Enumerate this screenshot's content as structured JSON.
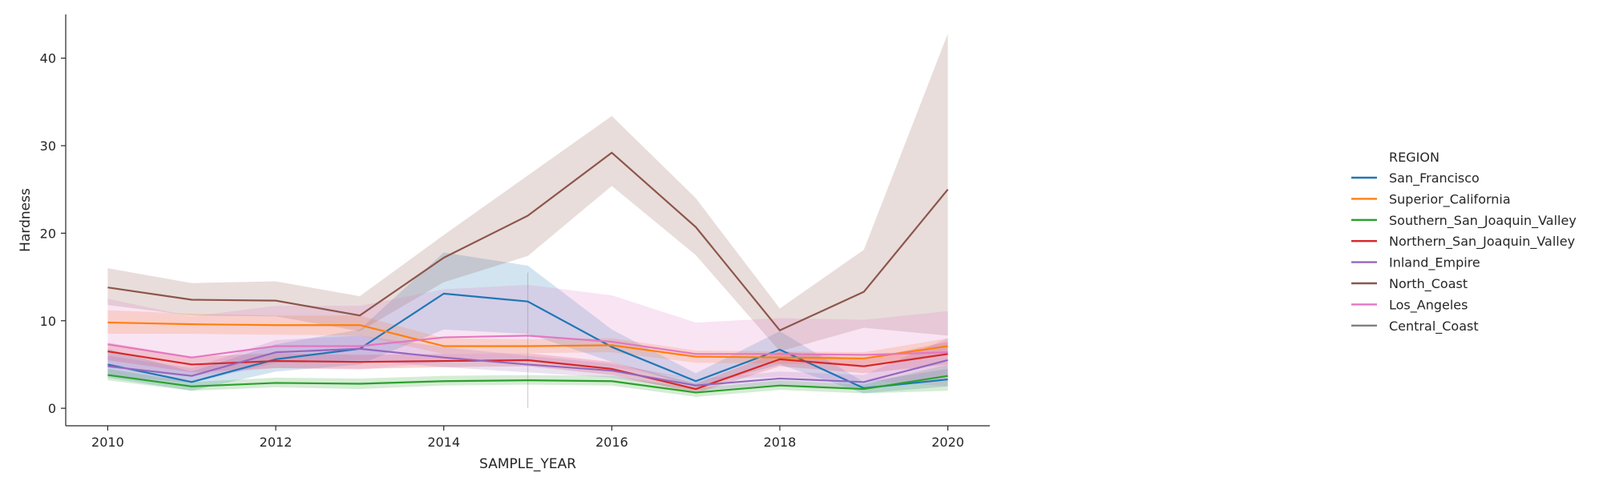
{
  "chart_data": {
    "type": "line",
    "title": "",
    "xlabel": "SAMPLE_YEAR",
    "ylabel": "Hardness",
    "xlim": [
      2009.5,
      2020.5
    ],
    "ylim": [
      -2,
      45
    ],
    "xticks": [
      2010,
      2012,
      2014,
      2016,
      2018,
      2020
    ],
    "yticks": [
      0,
      10,
      20,
      30,
      40
    ],
    "grid": false,
    "legend": {
      "title": "REGION",
      "placement": "right"
    },
    "x": [
      2010,
      2011,
      2012,
      2013,
      2014,
      2015,
      2016,
      2017,
      2018,
      2019,
      2020
    ],
    "series": [
      {
        "name": "San_Francisco",
        "color": "#1f77b4",
        "values": [
          5.0,
          3.0,
          5.6,
          6.8,
          13.1,
          12.2,
          7.0,
          3.1,
          6.7,
          2.3,
          3.3
        ],
        "ci_low": [
          3.5,
          2.0,
          4.2,
          5.0,
          9.0,
          8.5,
          5.3,
          2.4,
          5.0,
          1.7,
          2.5
        ],
        "ci_high": [
          6.8,
          4.2,
          7.3,
          9.0,
          17.8,
          16.3,
          9.0,
          4.0,
          8.8,
          3.0,
          4.5
        ]
      },
      {
        "name": "Superior_California",
        "color": "#ff7f0e",
        "values": [
          9.8,
          9.6,
          9.5,
          9.5,
          7.1,
          7.1,
          7.2,
          5.9,
          5.8,
          5.7,
          7.1
        ],
        "ci_low": [
          8.5,
          8.5,
          8.4,
          8.3,
          6.2,
          6.3,
          6.4,
          5.2,
          5.1,
          5.0,
          6.2
        ],
        "ci_high": [
          11.2,
          10.8,
          10.6,
          10.6,
          8.0,
          7.9,
          8.0,
          6.6,
          6.5,
          6.4,
          8.0
        ]
      },
      {
        "name": "Southern_San_Joaquin_Valley",
        "color": "#2ca02c",
        "values": [
          3.8,
          2.5,
          2.9,
          2.8,
          3.1,
          3.2,
          3.1,
          1.8,
          2.6,
          2.2,
          3.7
        ],
        "ci_low": [
          3.2,
          2.0,
          2.4,
          2.2,
          2.6,
          2.7,
          2.6,
          1.3,
          2.1,
          1.7,
          2.0
        ],
        "ci_high": [
          4.5,
          3.0,
          3.5,
          3.4,
          3.7,
          3.8,
          3.7,
          2.3,
          3.2,
          2.7,
          5.0
        ]
      },
      {
        "name": "Northern_San_Joaquin_Valley",
        "color": "#d62728",
        "values": [
          6.5,
          5.0,
          5.4,
          5.3,
          5.4,
          5.5,
          4.5,
          2.2,
          5.6,
          4.8,
          6.2
        ],
        "ci_low": [
          5.5,
          4.1,
          4.6,
          4.5,
          4.7,
          4.8,
          3.8,
          1.7,
          4.8,
          4.0,
          5.0
        ],
        "ci_high": [
          7.5,
          5.9,
          6.3,
          6.1,
          6.2,
          6.3,
          5.3,
          2.8,
          6.5,
          5.6,
          7.6
        ]
      },
      {
        "name": "Inland_Empire",
        "color": "#9467bd",
        "values": [
          4.8,
          3.7,
          6.4,
          6.8,
          5.8,
          5.0,
          4.3,
          2.6,
          3.4,
          3.0,
          5.5
        ],
        "ci_low": [
          3.7,
          2.9,
          5.2,
          5.5,
          4.7,
          4.1,
          3.5,
          2.0,
          2.7,
          2.3,
          3.8
        ],
        "ci_high": [
          6.0,
          4.6,
          7.8,
          8.3,
          7.0,
          6.0,
          5.1,
          3.3,
          4.2,
          3.8,
          8.0
        ]
      },
      {
        "name": "North_Coast",
        "color": "#8c564b",
        "values": [
          13.8,
          12.4,
          12.3,
          10.6,
          17.2,
          22.0,
          29.2,
          20.7,
          8.9,
          13.3,
          25.0
        ],
        "ci_low": [
          11.8,
          10.6,
          10.5,
          8.8,
          14.4,
          17.4,
          25.4,
          17.5,
          6.5,
          9.2,
          8.3
        ],
        "ci_high": [
          16.0,
          14.3,
          14.5,
          12.8,
          19.8,
          26.6,
          33.4,
          24.0,
          11.4,
          18.1,
          42.8
        ]
      },
      {
        "name": "Los_Angeles",
        "color": "#e377c2",
        "values": [
          7.3,
          5.8,
          7.1,
          7.1,
          8.1,
          8.3,
          7.6,
          6.2,
          6.2,
          6.1,
          6.4
        ],
        "ci_low": [
          5.0,
          3.7,
          4.6,
          4.4,
          5.3,
          5.5,
          4.7,
          3.3,
          3.6,
          3.2,
          2.5
        ],
        "ci_high": [
          12.5,
          10.5,
          11.7,
          11.7,
          13.6,
          14.1,
          12.9,
          9.8,
          10.3,
          10.1,
          11.1
        ]
      },
      {
        "name": "Central_Coast",
        "color": "#7f7f7f",
        "values": [
          null,
          null,
          null,
          null,
          null,
          9.0,
          null,
          null,
          null,
          null,
          null
        ],
        "ci_low": [
          null,
          null,
          null,
          null,
          null,
          0.0,
          null,
          null,
          null,
          null,
          null
        ],
        "ci_high": [
          null,
          null,
          null,
          null,
          null,
          15.5,
          null,
          null,
          null,
          null,
          null
        ]
      }
    ]
  }
}
